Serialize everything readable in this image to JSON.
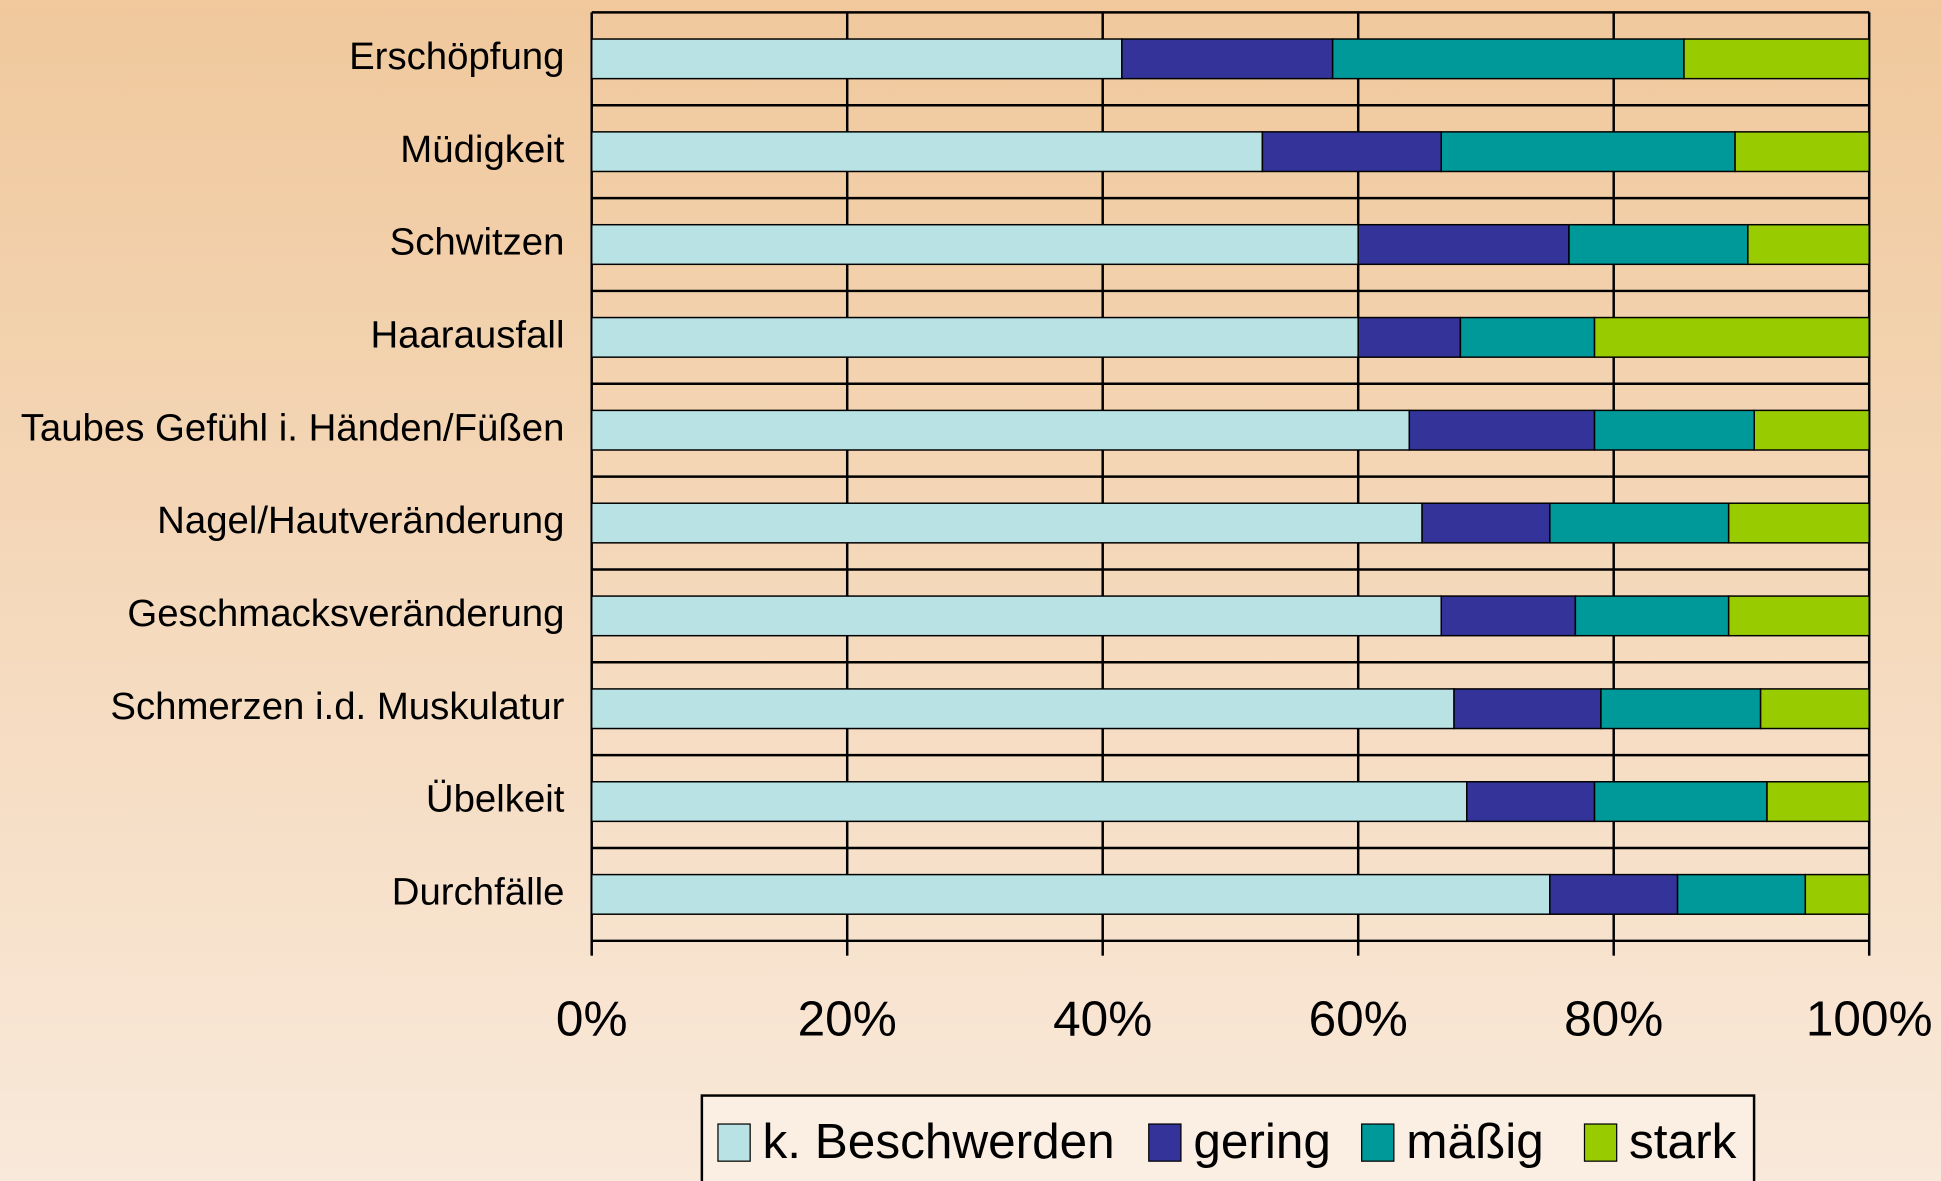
{
  "chart_data": {
    "type": "stacked_barh",
    "categories": [
      "Erschöpfung",
      "Müdigkeit",
      "Schwitzen",
      "Haarausfall",
      "Taubes Gefühl i. Händen/Füßen",
      "Nagel/Hautveränderung",
      "Geschmacksveränderung",
      "Schmerzen i.d. Muskulatur",
      "Übelkeit",
      "Durchfälle"
    ],
    "series": [
      {
        "name": "k. Beschwerden",
        "color": "#b8e2e4",
        "values": [
          41.5,
          52.5,
          60,
          60,
          64,
          65,
          66.5,
          67.5,
          68.5,
          75
        ]
      },
      {
        "name": "gering",
        "color": "#333399",
        "values": [
          16.5,
          14,
          16.5,
          8,
          14.5,
          10,
          10.5,
          11.5,
          10,
          10
        ]
      },
      {
        "name": "mäßig",
        "color": "#009999",
        "values": [
          27.5,
          23,
          14,
          10.5,
          12.5,
          14,
          12,
          12.5,
          13.5,
          10
        ]
      },
      {
        "name": "stark",
        "color": "#99cc00",
        "values": [
          14.5,
          10.5,
          9.5,
          21.5,
          9,
          11,
          11,
          8.5,
          8,
          5
        ]
      }
    ],
    "xlim": [
      0,
      100
    ],
    "xticks": [
      {
        "value": 0,
        "label": "0%"
      },
      {
        "value": 20,
        "label": "20%"
      },
      {
        "value": 40,
        "label": "40%"
      },
      {
        "value": 60,
        "label": "60%"
      },
      {
        "value": 80,
        "label": "80%"
      },
      {
        "value": 100,
        "label": "100%"
      }
    ],
    "grid": true,
    "legend": "bottom"
  }
}
